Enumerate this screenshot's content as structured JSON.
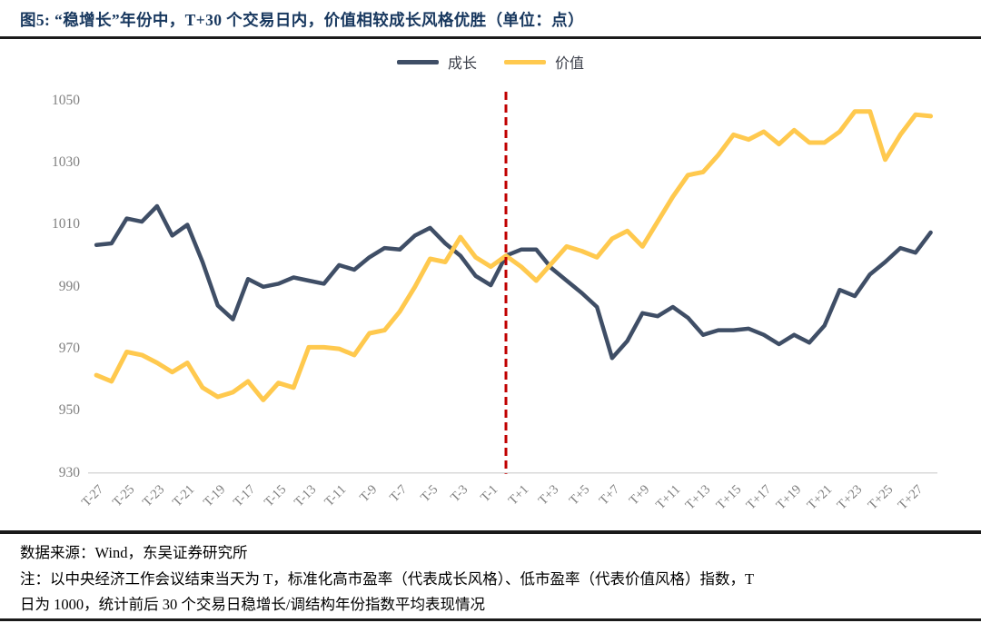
{
  "title": "图5:  “稳增长”年份中，T+30 个交易日内，价值相较成长风格优胜（单位：点）",
  "legend": {
    "growth": {
      "label": "成长",
      "color": "#3F4E66"
    },
    "value": {
      "label": "价值",
      "color": "#FFC94E"
    }
  },
  "footer": {
    "source": "数据来源：Wind，东吴证券研究所",
    "note_line1": "注：以中央经济工作会议结束当天为 T，标准化高市盈率（代表成长风格）、低市盈率（代表价值风格）指数，T",
    "note_line2": "日为 1000，统计前后 30 个交易日稳增长/调结构年份指数平均表现情况"
  },
  "chart_data": {
    "type": "line",
    "xlabel": "",
    "ylabel": "",
    "grid": false,
    "legend_position": "top-center",
    "ylim": [
      930,
      1055
    ],
    "y_ticks": [
      930,
      950,
      970,
      990,
      1010,
      1030,
      1050
    ],
    "x_days": [
      -27,
      -26,
      -25,
      -24,
      -23,
      -22,
      -21,
      -20,
      -19,
      -18,
      -17,
      -16,
      -15,
      -14,
      -13,
      -12,
      -11,
      -10,
      -9,
      -8,
      -7,
      -6,
      -5,
      -4,
      -3,
      -2,
      -1,
      0,
      1,
      2,
      3,
      4,
      5,
      6,
      7,
      8,
      9,
      10,
      11,
      12,
      13,
      14,
      15,
      16,
      17,
      18,
      19,
      20,
      21,
      22,
      23,
      24,
      25,
      26,
      27,
      28
    ],
    "x_tick_days": [
      -27,
      -25,
      -23,
      -21,
      -19,
      -17,
      -15,
      -13,
      -11,
      -9,
      -7,
      -5,
      -3,
      -1,
      1,
      3,
      5,
      7,
      9,
      11,
      13,
      15,
      17,
      19,
      21,
      23,
      25,
      27
    ],
    "x_tick_labels": [
      "T-27",
      "T-25",
      "T-23",
      "T-21",
      "T-19",
      "T-17",
      "T-15",
      "T-13",
      "T-11",
      "T-9",
      "T-7",
      "T-5",
      "T-3",
      "T-1",
      "T+1",
      "T+3",
      "T+5",
      "T+7",
      "T+9",
      "T+11",
      "T+13",
      "T+15",
      "T+17",
      "T+19",
      "T+21",
      "T+23",
      "T+25",
      "T+27"
    ],
    "event_line": {
      "x_day": 0,
      "color": "#C00000",
      "style": "dashed"
    },
    "axis_line_color": "#D9D9D9",
    "series": [
      {
        "name": "成长",
        "color": "#3F4E66",
        "values": [
          1003.5,
          1004,
          1012,
          1011,
          1016,
          1006.5,
          1010,
          998,
          984,
          979.5,
          992.5,
          990,
          991,
          993,
          992,
          991,
          997,
          995.5,
          999.5,
          1002.5,
          1002,
          1006.5,
          1009,
          1004,
          1000,
          993.5,
          990.5,
          1000,
          1002,
          1002,
          996,
          992,
          988,
          983.5,
          967,
          972.5,
          981.5,
          980.5,
          983.5,
          980,
          974.5,
          976,
          976,
          976.5,
          974.5,
          971.5,
          974.5,
          972,
          977.5,
          989,
          987,
          994,
          998,
          1002.5,
          1001,
          1007.5
        ]
      },
      {
        "name": "价值",
        "color": "#FFC94E",
        "values": [
          961.5,
          959.5,
          969,
          968,
          965.5,
          962.5,
          965.5,
          957.5,
          954.5,
          956,
          959.5,
          953.5,
          959,
          957.5,
          970.5,
          970.5,
          970,
          968,
          975,
          976,
          982,
          990,
          999,
          998,
          1006,
          999.5,
          996.5,
          1000,
          996.5,
          992,
          997.5,
          1003,
          1001.5,
          999.5,
          1005.5,
          1008,
          1003,
          1011,
          1019,
          1026,
          1027,
          1032.5,
          1039,
          1037.5,
          1040,
          1036,
          1040.5,
          1036.5,
          1036.5,
          1040,
          1046.5,
          1046.5,
          1031,
          1039,
          1045.5,
          1045
        ]
      }
    ]
  }
}
